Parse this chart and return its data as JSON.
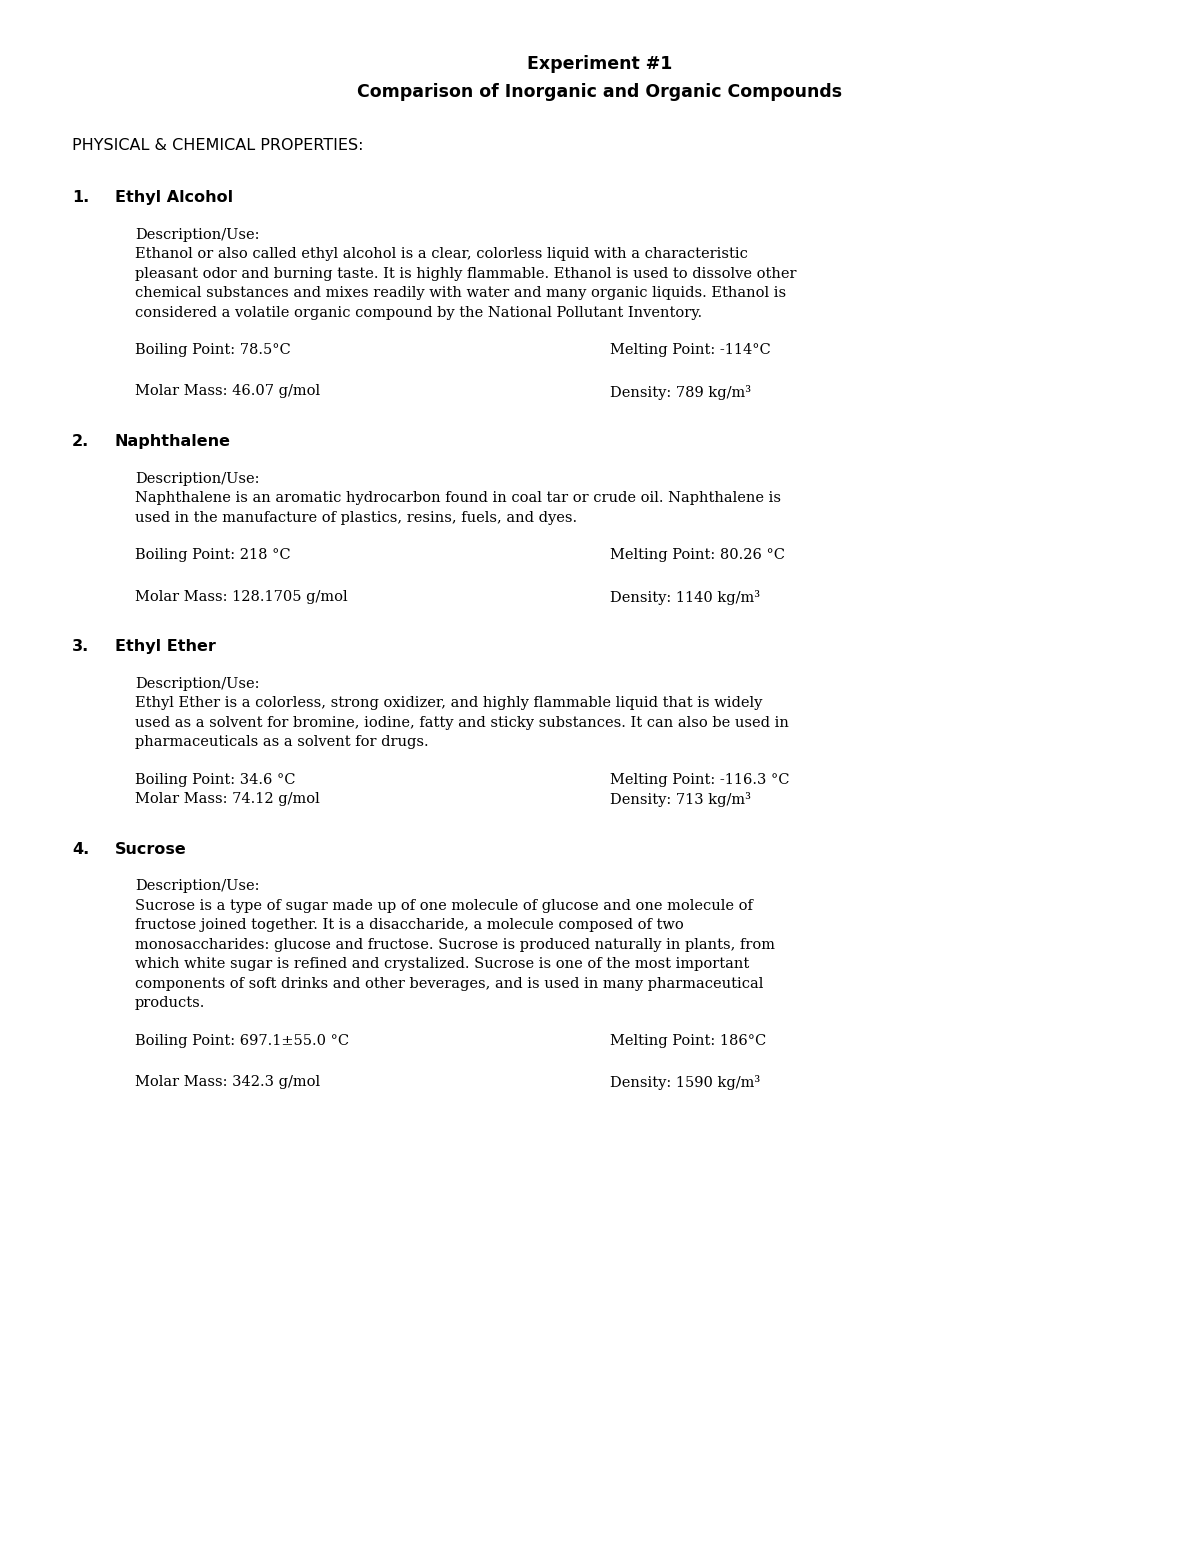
{
  "title_line1": "Experiment #1",
  "title_line2": "Comparison of Inorganic and Organic Compounds",
  "section_header": "PHYSICAL & CHEMICAL PROPERTIES:",
  "compounds": [
    {
      "number": "1.",
      "name": "Ethyl Alcohol",
      "desc_label": "Description/Use:",
      "description": "Ethanol or also called ethyl alcohol is a clear, colorless liquid with a characteristic\npleasant odor and burning taste. It is highly flammable. Ethanol is used to dissolve other\nchemical substances and mixes readily with water and many organic liquids. Ethanol is\nconsidered a volatile organic compound by the National Pollutant Inventory.",
      "boiling_point": "Boiling Point: 78.5°C",
      "melting_point": "Melting Point: -114°C",
      "molar_mass": "Molar Mass: 46.07 g/mol",
      "density": "Density: 789 kg/m³",
      "props_same_line": false
    },
    {
      "number": "2.",
      "name": "Naphthalene",
      "desc_label": "Description/Use:",
      "description": "Naphthalene is an aromatic hydrocarbon found in coal tar or crude oil. Naphthalene is\nused in the manufacture of plastics, resins, fuels, and dyes.",
      "boiling_point": "Boiling Point: 218 °C",
      "melting_point": "Melting Point: 80.26 °C",
      "molar_mass": "Molar Mass: 128.1705 g/mol",
      "density": "Density: 1140 kg/m³",
      "props_same_line": false
    },
    {
      "number": "3.",
      "name": "Ethyl Ether",
      "desc_label": "Description/Use:",
      "description": "Ethyl Ether is a colorless, strong oxidizer, and highly flammable liquid that is widely\nused as a solvent for bromine, iodine, fatty and sticky substances. It can also be used in\npharmaceuticals as a solvent for drugs.",
      "boiling_point": "Boiling Point: 34.6 °C",
      "melting_point": "Melting Point: -116.3 °C",
      "molar_mass": "Molar Mass: 74.12 g/mol",
      "density": "Density: 713 kg/m³",
      "props_same_line": true
    },
    {
      "number": "4.",
      "name": "Sucrose",
      "desc_label": "Description/Use:",
      "description": "Sucrose is a type of sugar made up of one molecule of glucose and one molecule of\nfructose joined together. It is a disaccharide, a molecule composed of two\nmonosaccharides: glucose and fructose. Sucrose is produced naturally in plants, from\nwhich white sugar is refined and crystalized. Sucrose is one of the most important\ncomponents of soft drinks and other beverages, and is used in many pharmaceutical\nproducts.",
      "boiling_point": "Boiling Point: 697.1±55.0 °C",
      "melting_point": "Melting Point: 186°C",
      "molar_mass": "Molar Mass: 342.3 g/mol",
      "density": "Density: 1590 kg/m³",
      "props_same_line": false
    }
  ],
  "bg_color": "#ffffff",
  "text_color": "#000000",
  "title_fontsize": 12.5,
  "header_fontsize": 11.5,
  "body_fontsize": 10.5,
  "name_fontsize": 11.5,
  "dpi": 100,
  "fig_width": 12.0,
  "fig_height": 15.53
}
